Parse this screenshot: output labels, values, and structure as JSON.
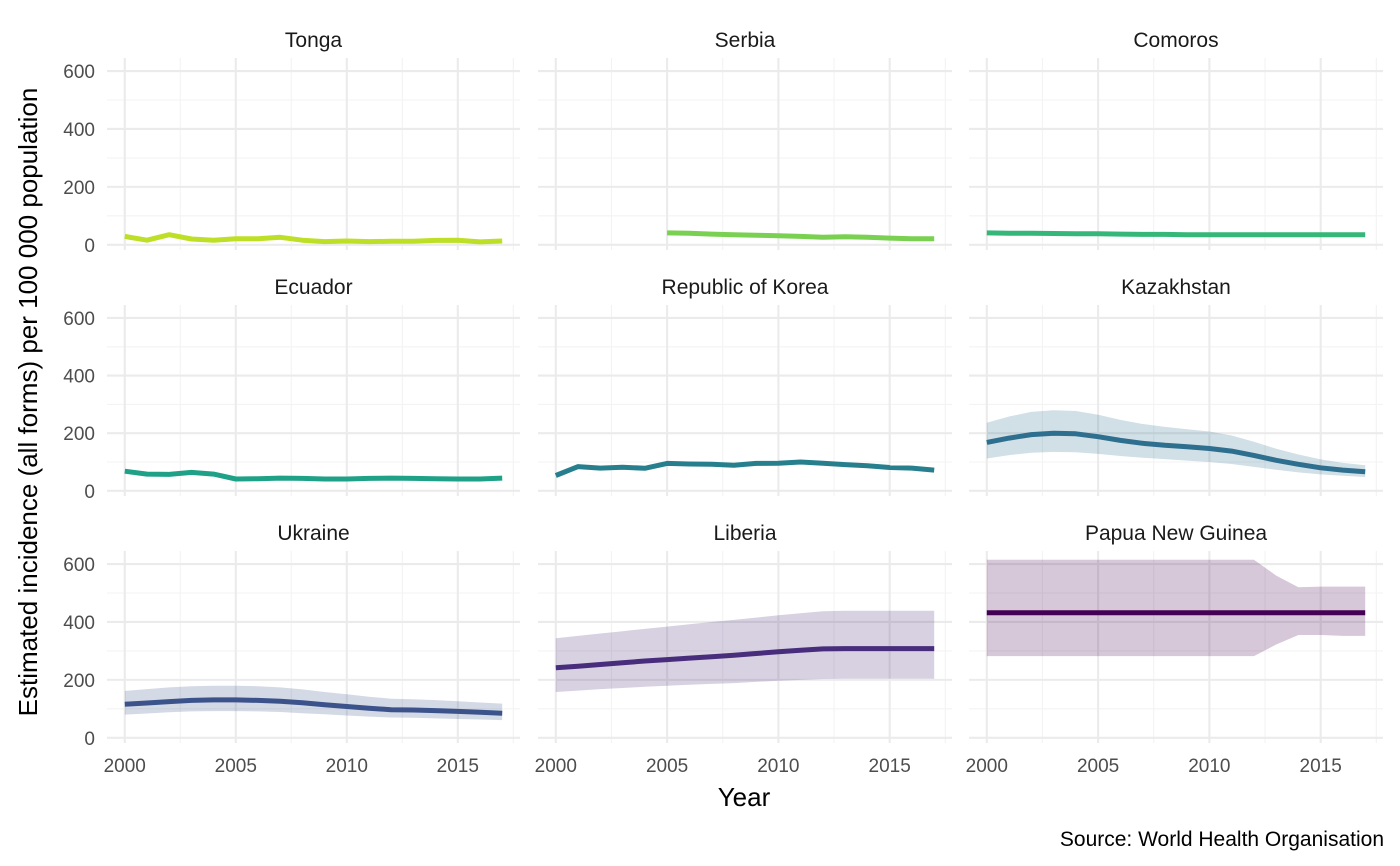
{
  "chart_data": {
    "type": "line",
    "facets": [
      {
        "title": "Tonga",
        "color": "#bddf26",
        "x": [
          2000,
          2001,
          2002,
          2003,
          2004,
          2005,
          2006,
          2007,
          2008,
          2009,
          2010,
          2011,
          2012,
          2013,
          2014,
          2015,
          2016,
          2017
        ],
        "values": [
          29,
          16,
          35,
          20,
          16,
          21,
          21,
          26,
          16,
          11,
          13,
          11,
          12,
          12,
          15,
          16,
          10,
          13
        ]
      },
      {
        "title": "Serbia",
        "color": "#7ad151",
        "x": [
          2005,
          2006,
          2007,
          2008,
          2009,
          2010,
          2011,
          2012,
          2013,
          2014,
          2015,
          2016,
          2017
        ],
        "values": [
          41,
          40,
          37,
          35,
          33,
          31,
          29,
          26,
          28,
          26,
          23,
          21,
          21
        ]
      },
      {
        "title": "Comoros",
        "color": "#35b779",
        "x": [
          2000,
          2001,
          2002,
          2003,
          2004,
          2005,
          2006,
          2007,
          2008,
          2009,
          2010,
          2011,
          2012,
          2013,
          2014,
          2015,
          2016,
          2017
        ],
        "values": [
          41,
          40,
          40,
          39,
          38,
          38,
          37,
          36,
          36,
          35,
          35,
          35,
          35,
          35,
          35,
          35,
          35,
          35
        ]
      },
      {
        "title": "Ecuador",
        "color": "#1fa187",
        "x": [
          2000,
          2001,
          2002,
          2003,
          2004,
          2005,
          2006,
          2007,
          2008,
          2009,
          2010,
          2011,
          2012,
          2013,
          2014,
          2015,
          2016,
          2017
        ],
        "values": [
          68,
          58,
          57,
          64,
          58,
          41,
          42,
          44,
          43,
          41,
          41,
          43,
          44,
          43,
          42,
          41,
          41,
          44
        ]
      },
      {
        "title": "Republic of Korea",
        "color": "#277f8e",
        "x": [
          2000,
          2001,
          2002,
          2003,
          2004,
          2005,
          2006,
          2007,
          2008,
          2009,
          2010,
          2011,
          2012,
          2013,
          2014,
          2015,
          2016,
          2017
        ],
        "values": [
          53,
          84,
          79,
          82,
          78,
          95,
          93,
          92,
          89,
          95,
          96,
          100,
          96,
          91,
          87,
          81,
          79,
          72
        ]
      },
      {
        "title": "Kazakhstan",
        "color": "#2e6e8e",
        "x": [
          2000,
          2001,
          2002,
          2003,
          2004,
          2005,
          2006,
          2007,
          2008,
          2009,
          2010,
          2011,
          2012,
          2013,
          2014,
          2015,
          2016,
          2017
        ],
        "values": [
          168,
          183,
          195,
          200,
          198,
          188,
          175,
          165,
          158,
          153,
          147,
          138,
          123,
          106,
          92,
          80,
          72,
          66
        ],
        "lower": [
          112,
          124,
          132,
          135,
          134,
          128,
          121,
          115,
          110,
          105,
          100,
          93,
          83,
          73,
          64,
          57,
          52,
          48
        ],
        "upper": [
          236,
          258,
          274,
          280,
          277,
          264,
          246,
          232,
          222,
          214,
          206,
          192,
          170,
          146,
          126,
          109,
          97,
          89
        ]
      },
      {
        "title": "Ukraine",
        "color": "#3b528b",
        "x": [
          2000,
          2001,
          2002,
          2003,
          2004,
          2005,
          2006,
          2007,
          2008,
          2009,
          2010,
          2011,
          2012,
          2013,
          2014,
          2015,
          2016,
          2017
        ],
        "values": [
          116,
          120,
          125,
          129,
          131,
          131,
          129,
          126,
          121,
          114,
          108,
          102,
          97,
          96,
          94,
          91,
          88,
          85
        ],
        "lower": [
          80,
          84,
          88,
          91,
          92,
          92,
          91,
          89,
          85,
          81,
          77,
          73,
          70,
          69,
          67,
          65,
          63,
          61
        ],
        "upper": [
          162,
          168,
          174,
          178,
          180,
          180,
          178,
          174,
          167,
          158,
          150,
          142,
          135,
          133,
          130,
          126,
          122,
          118
        ]
      },
      {
        "title": "Liberia",
        "color": "#472d7b",
        "x": [
          2000,
          2001,
          2002,
          2003,
          2004,
          2005,
          2006,
          2007,
          2008,
          2009,
          2010,
          2011,
          2012,
          2013,
          2014,
          2015,
          2016,
          2017
        ],
        "values": [
          242,
          247,
          253,
          259,
          265,
          270,
          275,
          280,
          285,
          291,
          297,
          302,
          307,
          308,
          308,
          308,
          308,
          308
        ],
        "lower": [
          158,
          163,
          168,
          172,
          176,
          180,
          183,
          186,
          189,
          193,
          197,
          200,
          203,
          204,
          204,
          204,
          204,
          204
        ],
        "upper": [
          344,
          352,
          360,
          368,
          376,
          384,
          392,
          400,
          407,
          415,
          423,
          430,
          437,
          439,
          439,
          439,
          439,
          439
        ]
      },
      {
        "title": "Papua New Guinea",
        "color": "#440154",
        "x": [
          2000,
          2001,
          2002,
          2003,
          2004,
          2005,
          2006,
          2007,
          2008,
          2009,
          2010,
          2011,
          2012,
          2013,
          2014,
          2015,
          2016,
          2017
        ],
        "values": [
          432,
          432,
          432,
          432,
          432,
          432,
          432,
          432,
          432,
          432,
          432,
          432,
          432,
          432,
          432,
          432,
          432,
          432
        ],
        "lower": [
          282,
          282,
          282,
          282,
          282,
          282,
          282,
          282,
          282,
          282,
          282,
          282,
          282,
          322,
          355,
          355,
          352,
          352
        ],
        "upper": [
          615,
          615,
          615,
          615,
          615,
          615,
          615,
          615,
          615,
          615,
          615,
          615,
          615,
          560,
          520,
          522,
          522,
          522
        ]
      }
    ],
    "x_ticks": [
      2000,
      2005,
      2010,
      2015
    ],
    "y_ticks": [
      0,
      200,
      400,
      600
    ],
    "xlim": [
      1999.2,
      2017.8
    ],
    "ylim": [
      -18,
      645
    ],
    "xlabel": "Year",
    "ylabel": "Estimated incidence (all forms) per 100 000 population",
    "caption": "Source: World Health Organisation",
    "grid": true
  }
}
